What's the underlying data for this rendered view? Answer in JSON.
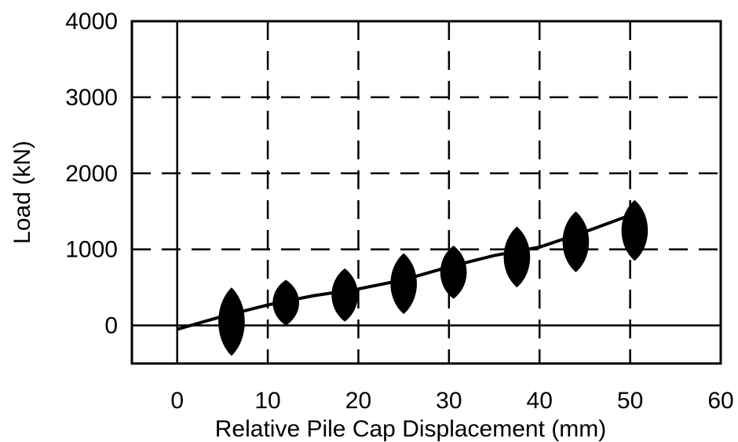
{
  "chart_data": {
    "type": "line",
    "title": "",
    "xlabel": "Relative Pile Cap Displacement (mm)",
    "ylabel": "Load (kN)",
    "xlim": [
      -5,
      60
    ],
    "ylim": [
      -500,
      4000
    ],
    "xticks": [
      0,
      10,
      20,
      30,
      40,
      50,
      60
    ],
    "yticks": [
      0,
      1000,
      2000,
      3000,
      4000
    ],
    "x_tick_labels": [
      "0",
      "10",
      "20",
      "30",
      "40",
      "50",
      "60"
    ],
    "y_tick_labels": [
      "0",
      "1000",
      "2000",
      "3000",
      "4000"
    ],
    "grid": "dashed",
    "legend": "none",
    "series": [
      {
        "values_description_free": true,
        "x": [
          0,
          5,
          10,
          15,
          20,
          25,
          30,
          35,
          40,
          45,
          50
        ],
        "y": [
          -50,
          120,
          270,
          390,
          480,
          600,
          770,
          920,
          1030,
          1230,
          1450
        ]
      }
    ],
    "cycle_bursts": [
      {
        "x": 6,
        "ymin": -400,
        "ymax": 500
      },
      {
        "x": 12,
        "ymin": 0,
        "ymax": 600
      },
      {
        "x": 18.5,
        "ymin": 50,
        "ymax": 750
      },
      {
        "x": 25,
        "ymin": 150,
        "ymax": 950
      },
      {
        "x": 30.5,
        "ymin": 350,
        "ymax": 1050
      },
      {
        "x": 37.5,
        "ymin": 500,
        "ymax": 1300
      },
      {
        "x": 44,
        "ymin": 700,
        "ymax": 1500
      },
      {
        "x": 50.5,
        "ymin": 850,
        "ymax": 1650
      }
    ]
  }
}
